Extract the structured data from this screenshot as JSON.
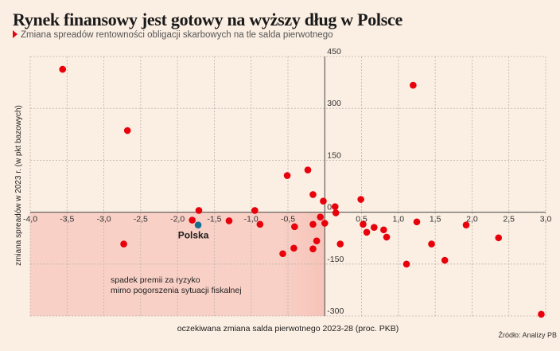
{
  "header": {
    "title": "Rynek finansowy jest gotowy na wyższy dług w Polsce",
    "subtitle": "Zmiana spreadów rentowności obligacji skarbowych na tle salda pierwotnego"
  },
  "source": "Źródło: Analizy PB",
  "colors": {
    "background": "#fbeee2",
    "shaded_region": "#f9d0c6",
    "point": "#e8000b",
    "highlight_point": "#1a6e8e",
    "marker": "#e30613"
  },
  "chart_data": {
    "type": "scatter",
    "title": "Rynek finansowy jest gotowy na wyższy dług w Polsce",
    "subtitle": "Zmiana spreadów rentowności obligacji skarbowych na tle salda pierwotnego",
    "xlabel": "oczekiwana zmiana salda pierwotnego 2023-28 (proc. PKB)",
    "ylabel": "zmiana spreadów w 2023 r. (w pkt bazowych)",
    "xlim": [
      -4.0,
      3.0
    ],
    "ylim": [
      -300,
      450
    ],
    "x_ticks": [
      -4.0,
      -3.5,
      -3.0,
      -2.5,
      -2.0,
      -1.5,
      -1.0,
      -0.5,
      0,
      0.5,
      1.0,
      1.5,
      2.0,
      2.5,
      3.0
    ],
    "x_tick_labels": [
      "-4,0",
      "-3,5",
      "-3,0",
      "-2,5",
      "-2,0",
      "-1,5",
      "-1,0",
      "-0,5",
      "",
      "0,5",
      "1,0",
      "1,5",
      "2,0",
      "2,5",
      "3,0"
    ],
    "y_ticks": [
      450,
      300,
      150,
      0,
      -150,
      -300
    ],
    "y_tick_labels": [
      "450",
      "300",
      "150",
      "0",
      "-150",
      "-300"
    ],
    "grid": true,
    "shaded_region": {
      "x": [
        -4.0,
        0
      ],
      "y": [
        -300,
        0
      ],
      "annotation": [
        "spadek premii za ryzyko",
        "mimo pogorszenia sytuacji fiskalnej"
      ]
    },
    "highlight": {
      "name": "Polska",
      "x": -1.72,
      "y": -37
    },
    "points": [
      {
        "x": -3.56,
        "y": 413
      },
      {
        "x": -2.68,
        "y": 236
      },
      {
        "x": -2.73,
        "y": -92
      },
      {
        "x": -1.71,
        "y": 5
      },
      {
        "x": -1.8,
        "y": -23
      },
      {
        "x": -1.3,
        "y": -25
      },
      {
        "x": -0.95,
        "y": 5
      },
      {
        "x": -0.88,
        "y": -35
      },
      {
        "x": -0.51,
        "y": 106
      },
      {
        "x": -0.23,
        "y": 122
      },
      {
        "x": -0.16,
        "y": 51
      },
      {
        "x": -0.02,
        "y": 32
      },
      {
        "x": 0.14,
        "y": 16
      },
      {
        "x": 0.15,
        "y": -2
      },
      {
        "x": -0.06,
        "y": -14
      },
      {
        "x": -0.41,
        "y": -42
      },
      {
        "x": -0.16,
        "y": -35
      },
      {
        "x": 0.0,
        "y": -32
      },
      {
        "x": -0.11,
        "y": -83
      },
      {
        "x": -0.42,
        "y": -104
      },
      {
        "x": -0.16,
        "y": -106
      },
      {
        "x": -0.57,
        "y": -120
      },
      {
        "x": 0.21,
        "y": -92
      },
      {
        "x": 0.49,
        "y": 37
      },
      {
        "x": 0.52,
        "y": -35
      },
      {
        "x": 0.57,
        "y": -58
      },
      {
        "x": 0.67,
        "y": -44
      },
      {
        "x": 0.8,
        "y": -51
      },
      {
        "x": 0.84,
        "y": -72
      },
      {
        "x": 1.2,
        "y": 367
      },
      {
        "x": 1.25,
        "y": -28
      },
      {
        "x": 1.45,
        "y": -92
      },
      {
        "x": 1.11,
        "y": -150
      },
      {
        "x": 1.63,
        "y": -139
      },
      {
        "x": 1.92,
        "y": -37
      },
      {
        "x": 2.36,
        "y": -74
      },
      {
        "x": 2.94,
        "y": -295
      }
    ]
  }
}
